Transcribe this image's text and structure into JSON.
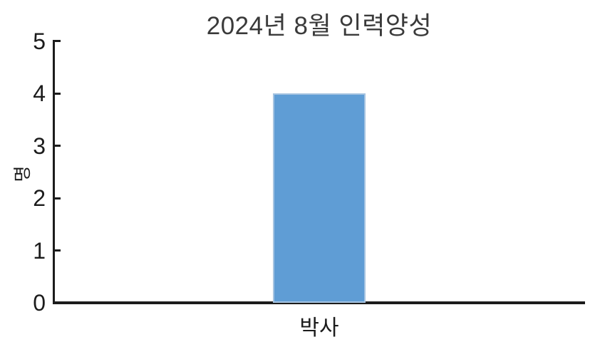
{
  "chart_data": {
    "type": "bar",
    "title": "2024년 8월 인력양성",
    "categories": [
      "박사"
    ],
    "values": [
      4
    ],
    "xlabel": "",
    "ylabel": "명",
    "ylim": [
      0,
      5
    ],
    "yticks": [
      0,
      1,
      2,
      3,
      4,
      5
    ],
    "grid": false,
    "legend": null,
    "colors": {
      "bar_fill": "#5f9dd5",
      "bar_edge": "#a6c4e1",
      "axis": "#1c1c1c",
      "tick_label": "#1c1c1c",
      "title": "#3a3a3a",
      "background": "#ffffff"
    }
  }
}
